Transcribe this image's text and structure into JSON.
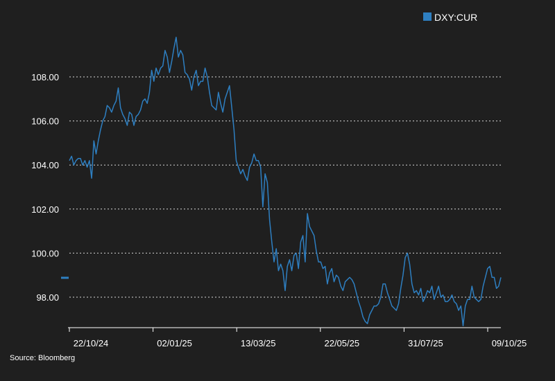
{
  "chart_data": {
    "type": "line",
    "legend": {
      "label": "DXY:CUR",
      "color": "#2e7fc1",
      "position": "top-right"
    },
    "source": "Source: Bloomberg",
    "y_ticks": [
      "98.00",
      "100.00",
      "102.00",
      "104.00",
      "106.00",
      "108.00"
    ],
    "x_ticks": [
      "22/10/24",
      "02/01/25",
      "13/03/25",
      "22/05/25",
      "31/07/25",
      "09/10/25"
    ],
    "ylim": [
      96.4,
      110.3
    ],
    "grid": "horizontal dotted",
    "series": [
      {
        "color": "#2e7fc1",
        "values": [
          104.2,
          104.4,
          104.0,
          104.2,
          104.3,
          104.3,
          104.0,
          104.2,
          103.9,
          104.2,
          103.4,
          105.1,
          104.5,
          105.1,
          105.6,
          106.0,
          106.2,
          106.7,
          106.6,
          106.4,
          106.7,
          106.9,
          107.5,
          106.6,
          106.3,
          106.1,
          105.8,
          106.4,
          106.3,
          105.8,
          106.2,
          106.3,
          106.5,
          106.9,
          107.0,
          106.8,
          107.3,
          108.3,
          107.8,
          108.4,
          108.1,
          108.4,
          108.5,
          109.2,
          108.9,
          108.2,
          108.7,
          109.3,
          109.8,
          108.9,
          109.2,
          109.0,
          108.2,
          108.1,
          107.9,
          107.4,
          108.0,
          108.3,
          107.6,
          107.8,
          107.8,
          108.4,
          108.0,
          107.3,
          106.7,
          106.6,
          106.5,
          107.3,
          106.8,
          106.4,
          107.0,
          107.3,
          107.6,
          106.6,
          105.6,
          104.2,
          103.9,
          103.6,
          103.8,
          103.5,
          103.3,
          103.9,
          104.1,
          104.5,
          104.2,
          104.2,
          103.9,
          102.1,
          103.6,
          103.2,
          101.5,
          100.5,
          99.6,
          100.2,
          99.2,
          99.5,
          99.2,
          98.3,
          99.4,
          99.7,
          99.2,
          99.9,
          100.0,
          99.3,
          100.5,
          100.8,
          99.6,
          101.8,
          101.2,
          101.0,
          100.8,
          100.1,
          99.6,
          99.6,
          99.3,
          99.4,
          98.6,
          99.1,
          99.3,
          98.7,
          99.0,
          98.9,
          98.5,
          98.3,
          98.7,
          98.8,
          98.9,
          98.8,
          98.6,
          98.2,
          97.8,
          97.5,
          97.1,
          96.9,
          96.8,
          97.2,
          97.4,
          97.6,
          97.6,
          97.7,
          98.0,
          98.6,
          98.6,
          98.2,
          97.9,
          97.6,
          97.5,
          97.4,
          97.7,
          98.4,
          99.0,
          99.8,
          100.0,
          99.5,
          98.6,
          98.2,
          98.3,
          98.1,
          98.4,
          97.8,
          98.0,
          98.3,
          98.2,
          98.5,
          97.9,
          98.2,
          98.5,
          98.0,
          98.1,
          97.8,
          97.8,
          97.9,
          98.1,
          97.8,
          97.7,
          97.4,
          97.6,
          96.7,
          97.6,
          97.9,
          97.9,
          98.5,
          98.0,
          97.9,
          97.8,
          97.9,
          98.5,
          98.9,
          99.3,
          99.4,
          98.9,
          98.9,
          98.4,
          98.5,
          98.9
        ]
      }
    ]
  }
}
